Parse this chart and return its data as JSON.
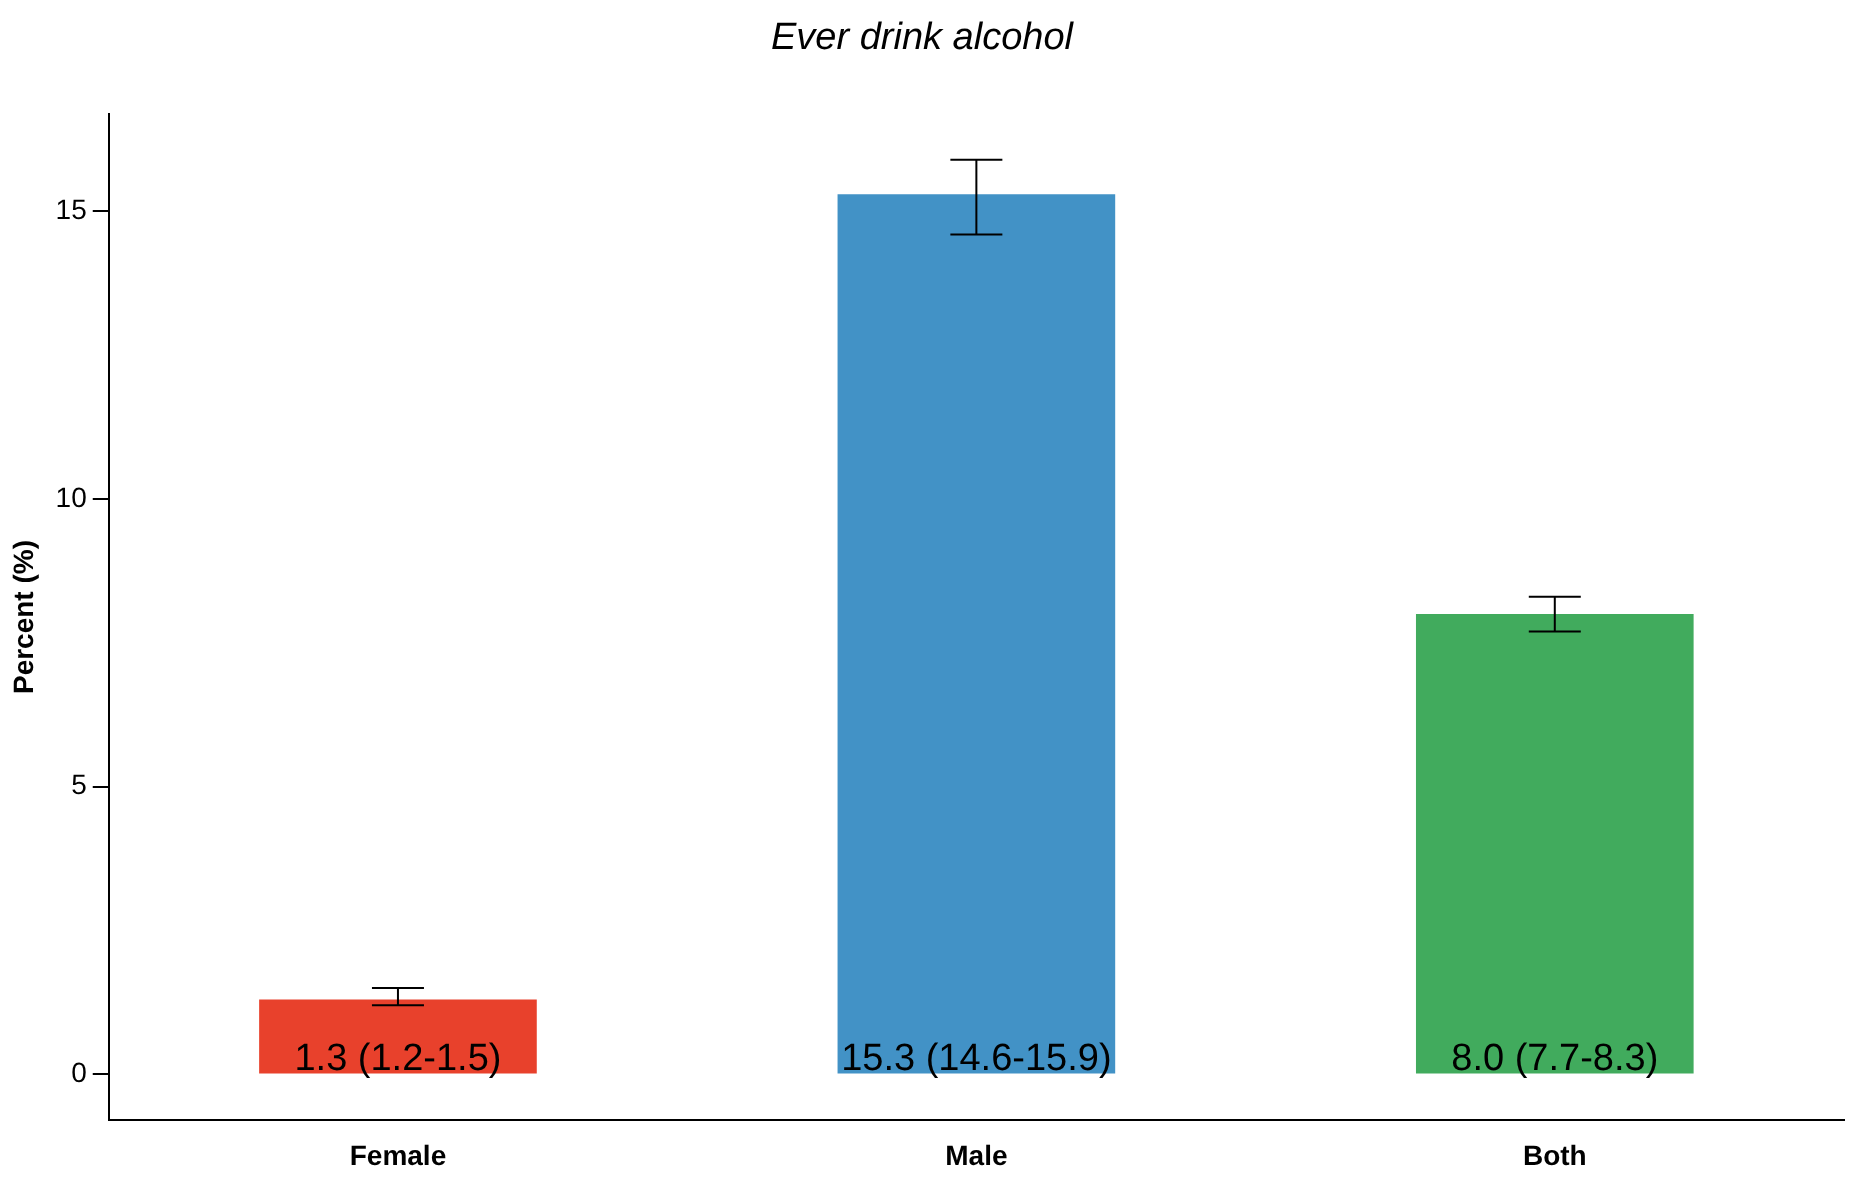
{
  "chart_data": {
    "type": "bar",
    "title": "Ever drink alcohol",
    "ylabel": "Percent (%)",
    "categories": [
      "Female",
      "Male",
      "Both"
    ],
    "values": [
      1.3,
      15.3,
      8.0
    ],
    "colors": [
      "#e8412c",
      "#4292c6",
      "#41ab5d"
    ],
    "errors": [
      [
        1.2,
        1.5
      ],
      [
        14.6,
        15.9
      ],
      [
        7.7,
        8.3
      ]
    ],
    "value_labels": [
      "1.3 (1.2-1.5)",
      "15.3 (14.6-15.9)",
      "8.0 (7.7-8.3)"
    ],
    "ylim": [
      -0.8,
      16.7
    ],
    "yticks": [
      0,
      5,
      10,
      15
    ],
    "grid": false,
    "legend": false
  }
}
